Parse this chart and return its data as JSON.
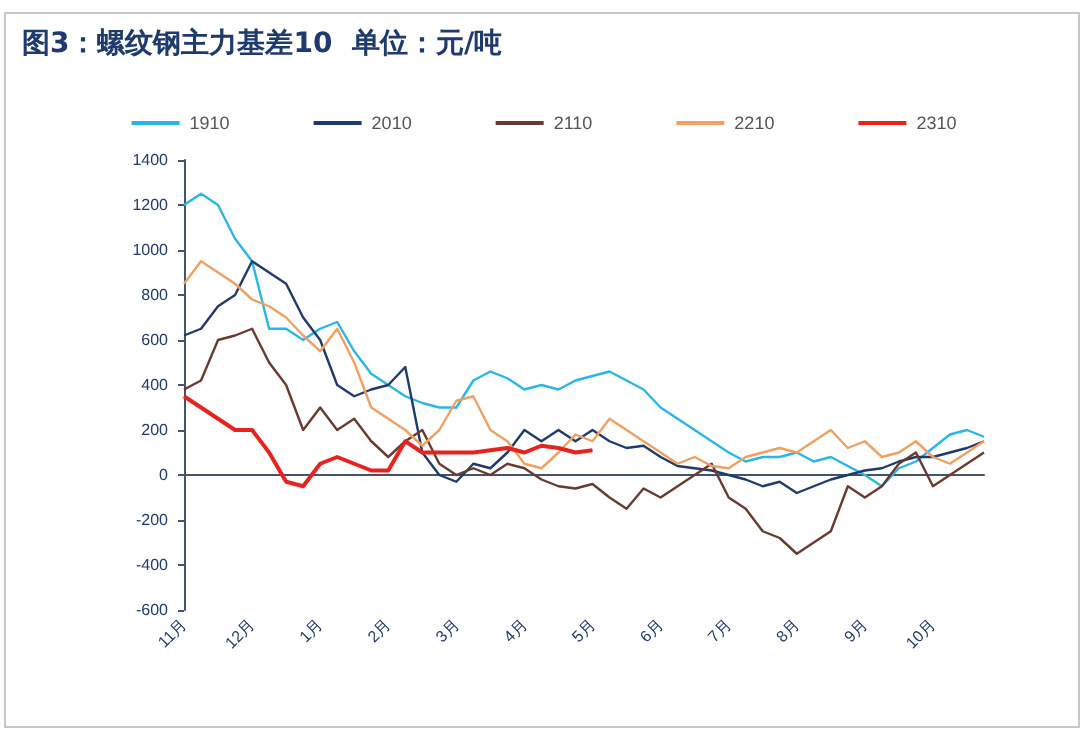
{
  "chart_data": {
    "type": "line",
    "title": "图3：螺纹钢主力基差10  单位：元/吨",
    "categories": [
      "11月",
      null,
      null,
      null,
      "12月",
      null,
      null,
      null,
      "1月",
      null,
      null,
      null,
      "2月",
      null,
      null,
      null,
      "3月",
      null,
      null,
      null,
      "4月",
      null,
      null,
      null,
      "5月",
      null,
      null,
      null,
      "6月",
      null,
      null,
      null,
      "7月",
      null,
      null,
      null,
      "8月",
      null,
      null,
      null,
      "9月",
      null,
      null,
      null,
      "10月",
      null,
      null,
      null
    ],
    "series": [
      {
        "name": "1910",
        "color": "#29b6e8",
        "values": [
          1200,
          1250,
          1200,
          1050,
          950,
          650,
          650,
          600,
          650,
          680,
          550,
          450,
          400,
          350,
          320,
          300,
          300,
          420,
          460,
          430,
          380,
          400,
          380,
          420,
          440,
          460,
          420,
          380,
          300,
          250,
          200,
          150,
          100,
          60,
          80,
          80,
          100,
          60,
          80,
          40,
          0,
          -50,
          30,
          60,
          120,
          180,
          200,
          170
        ]
      },
      {
        "name": "2010",
        "color": "#1f3a6e",
        "values": [
          620,
          650,
          750,
          800,
          950,
          900,
          850,
          700,
          600,
          400,
          350,
          380,
          400,
          480,
          100,
          0,
          -30,
          50,
          30,
          100,
          200,
          150,
          200,
          150,
          200,
          150,
          120,
          130,
          80,
          40,
          30,
          20,
          0,
          -20,
          -50,
          -30,
          -80,
          -50,
          -20,
          0,
          20,
          30,
          60,
          80,
          80,
          100,
          120,
          150
        ]
      },
      {
        "name": "2110",
        "color": "#6b3a2e",
        "values": [
          380,
          420,
          600,
          620,
          650,
          500,
          400,
          200,
          300,
          200,
          250,
          150,
          80,
          150,
          200,
          50,
          0,
          30,
          0,
          50,
          30,
          -20,
          -50,
          -60,
          -40,
          -100,
          -150,
          -60,
          -100,
          -50,
          0,
          50,
          -100,
          -150,
          -250,
          -280,
          -350,
          -300,
          -250,
          -50,
          -100,
          -50,
          50,
          100,
          -50,
          0,
          50,
          100
        ]
      },
      {
        "name": "2210",
        "color": "#f0a060",
        "values": [
          850,
          950,
          900,
          850,
          780,
          750,
          700,
          620,
          550,
          650,
          500,
          300,
          250,
          200,
          130,
          200,
          330,
          350,
          200,
          150,
          50,
          30,
          100,
          180,
          150,
          250,
          200,
          150,
          100,
          50,
          80,
          40,
          30,
          80,
          100,
          120,
          100,
          150,
          200,
          120,
          150,
          80,
          100,
          150,
          80,
          50,
          100,
          150
        ]
      },
      {
        "name": "2310",
        "color": "#e8231d",
        "values": [
          350,
          300,
          250,
          200,
          200,
          100,
          -30,
          -50,
          50,
          80,
          50,
          20,
          20,
          150,
          100,
          100,
          100,
          100,
          110,
          120,
          100,
          130,
          120,
          100,
          110,
          null,
          null,
          null,
          null,
          null,
          null,
          null,
          null,
          null,
          null,
          null,
          null,
          null,
          null,
          null,
          null,
          null,
          null,
          null,
          null,
          null,
          null,
          null
        ]
      }
    ],
    "ylim": [
      -600,
      1400
    ],
    "yticks": [
      -600,
      -400,
      -200,
      0,
      200,
      400,
      600,
      800,
      1000,
      1200,
      1400
    ],
    "legend": "top",
    "marker": "none"
  }
}
